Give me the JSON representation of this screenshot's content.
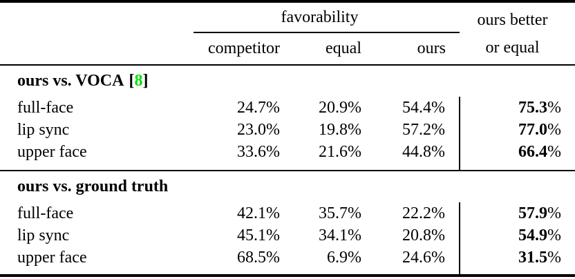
{
  "table": {
    "header": {
      "favorability_label": "favorability",
      "sub_columns": [
        "competitor",
        "equal",
        "ours"
      ],
      "better_line1": "ours better",
      "better_line2": "or equal"
    },
    "percent_sign": "%",
    "sections": [
      {
        "title_text": "ours vs. VOCA",
        "citation": {
          "open": "[",
          "number": "8",
          "close": "]"
        },
        "rows": [
          {
            "label": "full-face",
            "competitor": "24.7%",
            "equal": "20.9%",
            "ours": "54.4%",
            "better_num": "75.3"
          },
          {
            "label": "lip sync",
            "competitor": "23.0%",
            "equal": "19.8%",
            "ours": "57.2%",
            "better_num": "77.0"
          },
          {
            "label": "upper face",
            "competitor": "33.6%",
            "equal": "21.6%",
            "ours": "44.8%",
            "better_num": "66.4"
          }
        ]
      },
      {
        "title_text": "ours vs. ground truth",
        "rows": [
          {
            "label": "full-face",
            "competitor": "42.1%",
            "equal": "35.7%",
            "ours": "22.2%",
            "better_num": "57.9"
          },
          {
            "label": "lip sync",
            "competitor": "45.1%",
            "equal": "34.1%",
            "ours": "20.8%",
            "better_num": "54.9"
          },
          {
            "label": "upper face",
            "competitor": "68.5%",
            "equal": "6.9%",
            "ours": "24.6%",
            "better_num": "31.5"
          }
        ]
      }
    ],
    "colors": {
      "citation_green": "#00e000",
      "text": "#000000",
      "background": "#ffffff"
    }
  }
}
